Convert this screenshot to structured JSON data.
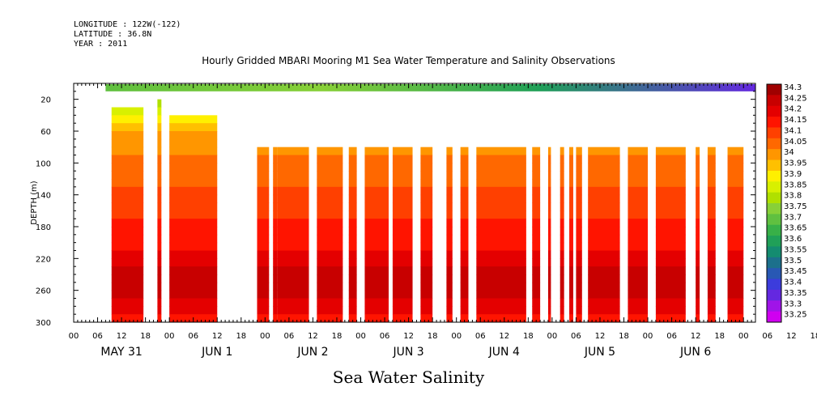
{
  "meta": {
    "longitude": "LONGITUDE : 122W(-122)",
    "latitude": "LATITUDE : 36.8N",
    "year": "YEAR : 2011"
  },
  "chart_data": {
    "type": "heatmap",
    "title": "Hourly Gridded MBARI Mooring M1 Sea Water Temperature and Salinity Observations",
    "xlabel": "Sea Water Salinity",
    "ylabel": "DEPTH (m)",
    "ylim": [
      300,
      0
    ],
    "yticks": [
      "20",
      "60",
      "100",
      "140",
      "180",
      "220",
      "260",
      "300"
    ],
    "x_hours_range": [
      0,
      171
    ],
    "hour_tick_labels": [
      "00",
      "06",
      "12",
      "18",
      "00",
      "06",
      "12",
      "18",
      "00",
      "06",
      "12",
      "18",
      "00",
      "06",
      "12",
      "18",
      "00",
      "06",
      "12",
      "18",
      "00",
      "06",
      "12",
      "18",
      "00",
      "06",
      "12",
      "18",
      "00",
      "06",
      "12",
      "18",
      "00"
    ],
    "day_labels": [
      "MAY 31",
      "JUN  1",
      "JUN  2",
      "JUN  3",
      "JUN  4",
      "JUN  5",
      "JUN  6"
    ],
    "colorbar_levels": [
      "34.3",
      "34.25",
      "34.2",
      "34.15",
      "34.1",
      "34.05",
      "34",
      "33.95",
      "33.9",
      "33.85",
      "33.8",
      "33.75",
      "33.7",
      "33.65",
      "33.6",
      "33.55",
      "33.5",
      "33.45",
      "33.4",
      "33.35",
      "33.3",
      "33.25"
    ],
    "colorbar_colors": [
      "#a00000",
      "#c80000",
      "#e40000",
      "#ff1400",
      "#ff4000",
      "#ff6800",
      "#ff9600",
      "#ffc000",
      "#fff000",
      "#d8f000",
      "#b0e000",
      "#88d038",
      "#60c040",
      "#38b048",
      "#20a058",
      "#148c70",
      "#1c708c",
      "#2858b4",
      "#3c3cdc",
      "#6428e0",
      "#a014e8",
      "#d000f0"
    ],
    "surface_band": {
      "depth_top": 0,
      "depth_bottom": 10,
      "hour_range": [
        8,
        171
      ],
      "salinity": [
        33.7,
        33.75,
        33.6,
        33.35
      ]
    },
    "profile_depths": [
      30,
      50,
      80,
      100,
      120,
      140,
      160,
      180,
      200,
      220,
      240,
      250,
      260,
      270,
      290,
      300
    ],
    "profile_salinity": [
      33.83,
      33.98,
      34.02,
      34.06,
      34.09,
      34.12,
      34.14,
      34.16,
      34.19,
      34.22,
      34.26,
      34.29,
      34.28,
      34.24,
      34.21,
      34.18
    ],
    "data_segments": [
      {
        "hours": [
          9.5,
          17.5
        ],
        "top_depth": 30
      },
      {
        "hours": [
          21,
          22
        ],
        "top_depth": 20
      },
      {
        "hours": [
          24,
          36
        ],
        "top_depth": 40
      },
      {
        "hours": [
          46,
          49
        ],
        "top_depth": 80
      },
      {
        "hours": [
          50,
          51
        ],
        "top_depth": 80
      },
      {
        "hours": [
          51,
          59
        ],
        "top_depth": 80
      },
      {
        "hours": [
          61,
          67.5
        ],
        "top_depth": 80
      },
      {
        "hours": [
          69,
          71
        ],
        "top_depth": 80
      },
      {
        "hours": [
          73,
          79
        ],
        "top_depth": 80
      },
      {
        "hours": [
          80,
          85
        ],
        "top_depth": 80
      },
      {
        "hours": [
          87,
          90
        ],
        "top_depth": 80
      },
      {
        "hours": [
          93.5,
          95
        ],
        "top_depth": 80
      },
      {
        "hours": [
          97,
          99
        ],
        "top_depth": 80
      },
      {
        "hours": [
          101,
          113.5
        ],
        "top_depth": 80
      },
      {
        "hours": [
          115,
          117
        ],
        "top_depth": 80
      },
      {
        "hours": [
          119,
          119.7
        ],
        "top_depth": 80
      },
      {
        "hours": [
          122,
          123
        ],
        "top_depth": 80
      },
      {
        "hours": [
          124.3,
          125.3
        ],
        "top_depth": 80
      },
      {
        "hours": [
          126,
          127.5
        ],
        "top_depth": 80
      },
      {
        "hours": [
          129,
          137
        ],
        "top_depth": 80
      },
      {
        "hours": [
          139,
          144
        ],
        "top_depth": 80
      },
      {
        "hours": [
          146,
          153.5
        ],
        "top_depth": 80
      },
      {
        "hours": [
          156,
          157
        ],
        "top_depth": 80
      },
      {
        "hours": [
          159,
          161
        ],
        "top_depth": 80
      },
      {
        "hours": [
          164,
          168
        ],
        "top_depth": 80
      }
    ]
  }
}
